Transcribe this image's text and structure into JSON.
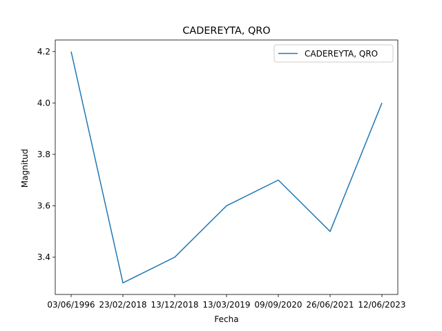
{
  "chart_data": {
    "type": "line",
    "title": "CADEREYTA, QRO",
    "xlabel": "Fecha",
    "ylabel": "Magnitud",
    "categories": [
      "03/06/1996",
      "23/02/2018",
      "13/12/2018",
      "13/03/2019",
      "09/09/2020",
      "26/06/2021",
      "12/06/2023"
    ],
    "series": [
      {
        "name": "CADEREYTA, QRO",
        "values": [
          4.2,
          3.3,
          3.4,
          3.6,
          3.7,
          3.5,
          4.0
        ],
        "color": "#1f77b4"
      }
    ],
    "yticks": [
      "3.4",
      "3.6",
      "3.8",
      "4.0",
      "4.2"
    ],
    "ylim": [
      3.255,
      4.245
    ],
    "grid": false,
    "legend": "upper right"
  }
}
